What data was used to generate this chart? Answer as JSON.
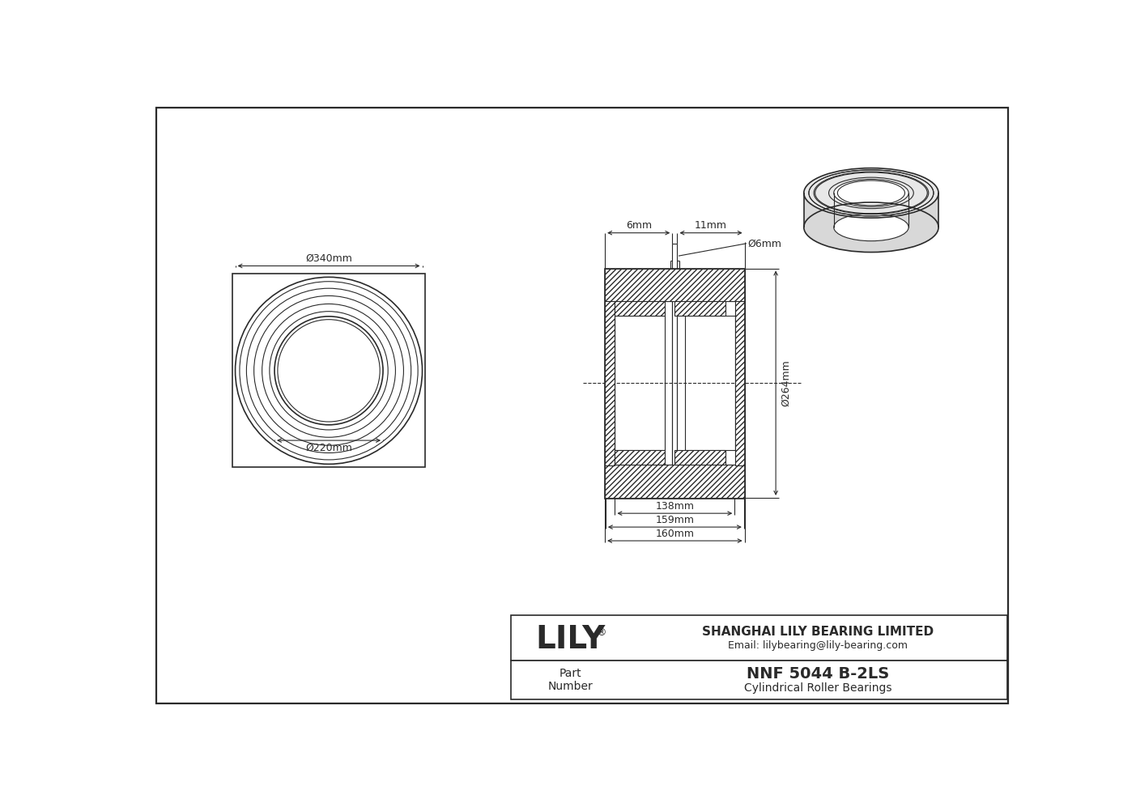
{
  "bg_color": "#ffffff",
  "line_color": "#2a2a2a",
  "title": "NNF 5044 B-2LS",
  "subtitle": "Cylindrical Roller Bearings",
  "company": "SHANGHAI LILY BEARING LIMITED",
  "email": "Email: lilybearing@lily-bearing.com",
  "logo": "LILY",
  "dim_od": "Ø340mm",
  "dim_id": "Ø220mm",
  "dim_264": "Ø264mm",
  "dim_6dia": "Ø6mm",
  "dim_6mm": "6mm",
  "dim_11mm": "11mm",
  "dim_138mm": "138mm",
  "dim_159mm": "159mm",
  "dim_160mm": "160mm"
}
